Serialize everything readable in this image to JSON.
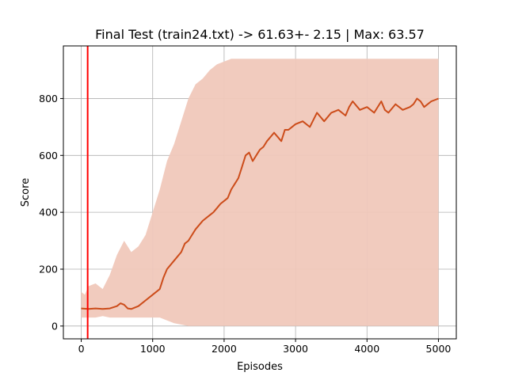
{
  "chart_data": {
    "type": "line",
    "title": "Final Test (train24.txt) -> 61.63+- 2.15 | Max: 63.57",
    "xlabel": "Episodes",
    "ylabel": "Score",
    "xlim": [
      -250,
      5250
    ],
    "ylim": [
      -45,
      985
    ],
    "xticks": [
      0,
      1000,
      2000,
      3000,
      4000,
      5000
    ],
    "xtick_labels": [
      "0",
      "1000",
      "2000",
      "3000",
      "4000",
      "5000"
    ],
    "yticks": [
      0,
      200,
      400,
      600,
      800
    ],
    "ytick_labels": [
      "0",
      "200",
      "400",
      "600",
      "800"
    ],
    "grid": true,
    "vertical_marker": {
      "x": 90,
      "color": "#ff0000"
    },
    "colors": {
      "raw": "#f0c8bb",
      "smoothed": "#cc4c1a"
    },
    "series": [
      {
        "role": "raw-episode-scores",
        "x": [
          0,
          50,
          100,
          200,
          300,
          400,
          500,
          600,
          700,
          800,
          900,
          1000,
          1100,
          1200,
          1300,
          1400,
          1500,
          1600,
          1700,
          1800,
          1900,
          2000,
          2100,
          2200,
          2300,
          2400,
          2500,
          2600,
          2700,
          2800,
          2900,
          3000,
          3200,
          3400,
          3600,
          3800,
          4000,
          4200,
          4400,
          4600,
          4800,
          5000
        ],
        "upper": [
          120,
          110,
          140,
          150,
          130,
          180,
          250,
          300,
          260,
          280,
          320,
          400,
          480,
          580,
          640,
          720,
          800,
          850,
          870,
          900,
          920,
          930,
          940,
          940,
          940,
          940,
          940,
          940,
          940,
          940,
          940,
          940,
          940,
          940,
          940,
          940,
          940,
          940,
          940,
          940,
          940,
          940
        ],
        "lower": [
          30,
          30,
          30,
          30,
          35,
          30,
          30,
          30,
          30,
          30,
          30,
          30,
          30,
          20,
          10,
          5,
          0,
          0,
          0,
          0,
          0,
          0,
          0,
          0,
          0,
          0,
          0,
          0,
          0,
          0,
          0,
          0,
          0,
          0,
          0,
          0,
          0,
          0,
          0,
          0,
          0,
          0
        ]
      },
      {
        "role": "smoothed-score",
        "x": [
          0,
          100,
          200,
          300,
          400,
          500,
          550,
          600,
          650,
          700,
          800,
          900,
          1000,
          1050,
          1100,
          1150,
          1200,
          1300,
          1400,
          1450,
          1500,
          1550,
          1600,
          1700,
          1800,
          1850,
          1900,
          1950,
          2000,
          2050,
          2100,
          2150,
          2200,
          2250,
          2300,
          2350,
          2400,
          2450,
          2500,
          2550,
          2600,
          2700,
          2800,
          2850,
          2900,
          3000,
          3100,
          3200,
          3300,
          3400,
          3500,
          3600,
          3700,
          3750,
          3800,
          3900,
          4000,
          4100,
          4200,
          4250,
          4300,
          4400,
          4500,
          4600,
          4650,
          4700,
          4750,
          4800,
          4900,
          5000
        ],
        "values": [
          62,
          60,
          62,
          60,
          62,
          70,
          80,
          75,
          62,
          60,
          70,
          90,
          110,
          120,
          130,
          170,
          200,
          230,
          260,
          290,
          300,
          320,
          340,
          370,
          390,
          400,
          415,
          430,
          440,
          450,
          480,
          500,
          520,
          560,
          600,
          610,
          580,
          600,
          620,
          630,
          650,
          680,
          650,
          690,
          690,
          710,
          720,
          700,
          750,
          720,
          750,
          760,
          740,
          770,
          790,
          760,
          770,
          750,
          790,
          760,
          750,
          780,
          760,
          770,
          780,
          800,
          790,
          770,
          790,
          800
        ]
      }
    ]
  }
}
